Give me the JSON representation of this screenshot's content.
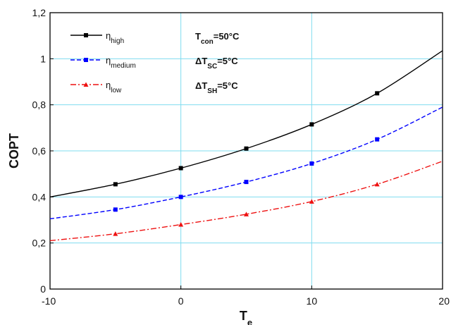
{
  "chart_data": {
    "type": "line",
    "xlabel": {
      "main": "T",
      "sub": "e"
    },
    "ylabel": "COPT",
    "xlim": [
      -10,
      20
    ],
    "ylim": [
      0,
      1.2
    ],
    "x_ticks": [
      "-10",
      "0",
      "10",
      "20"
    ],
    "y_ticks": [
      "0",
      "0,2",
      "0,4",
      "0,6",
      "0,8",
      "1",
      "1,2"
    ],
    "grid": true,
    "legend_position": "top-left",
    "x": [
      -10,
      -5,
      0,
      5,
      10,
      15,
      20
    ],
    "series": [
      {
        "name": {
          "main": "η",
          "sub": "high"
        },
        "color": "#000000",
        "marker": "square",
        "dash": "solid",
        "values": [
          0.4,
          0.455,
          0.525,
          0.61,
          0.715,
          0.85,
          1.035
        ]
      },
      {
        "name": {
          "main": "η",
          "sub": "medium"
        },
        "color": "#0000ff",
        "marker": "square",
        "dash": "dashed",
        "values": [
          0.305,
          0.345,
          0.4,
          0.465,
          0.545,
          0.65,
          0.79
        ]
      },
      {
        "name": {
          "main": "η",
          "sub": "low"
        },
        "color": "#ee1111",
        "marker": "triangle",
        "dash": "dashdot",
        "values": [
          0.21,
          0.24,
          0.28,
          0.325,
          0.38,
          0.455,
          0.555
        ]
      }
    ],
    "annotations": [
      {
        "main": "T",
        "sub": "con",
        "rest": "=50°C"
      },
      {
        "main": "ΔT",
        "sub": "SC",
        "rest": "=5°C"
      },
      {
        "main": "ΔT",
        "sub": "SH",
        "rest": "=5°C"
      }
    ],
    "colors": {
      "grid": "#7fdcef",
      "frame": "#000000"
    }
  }
}
